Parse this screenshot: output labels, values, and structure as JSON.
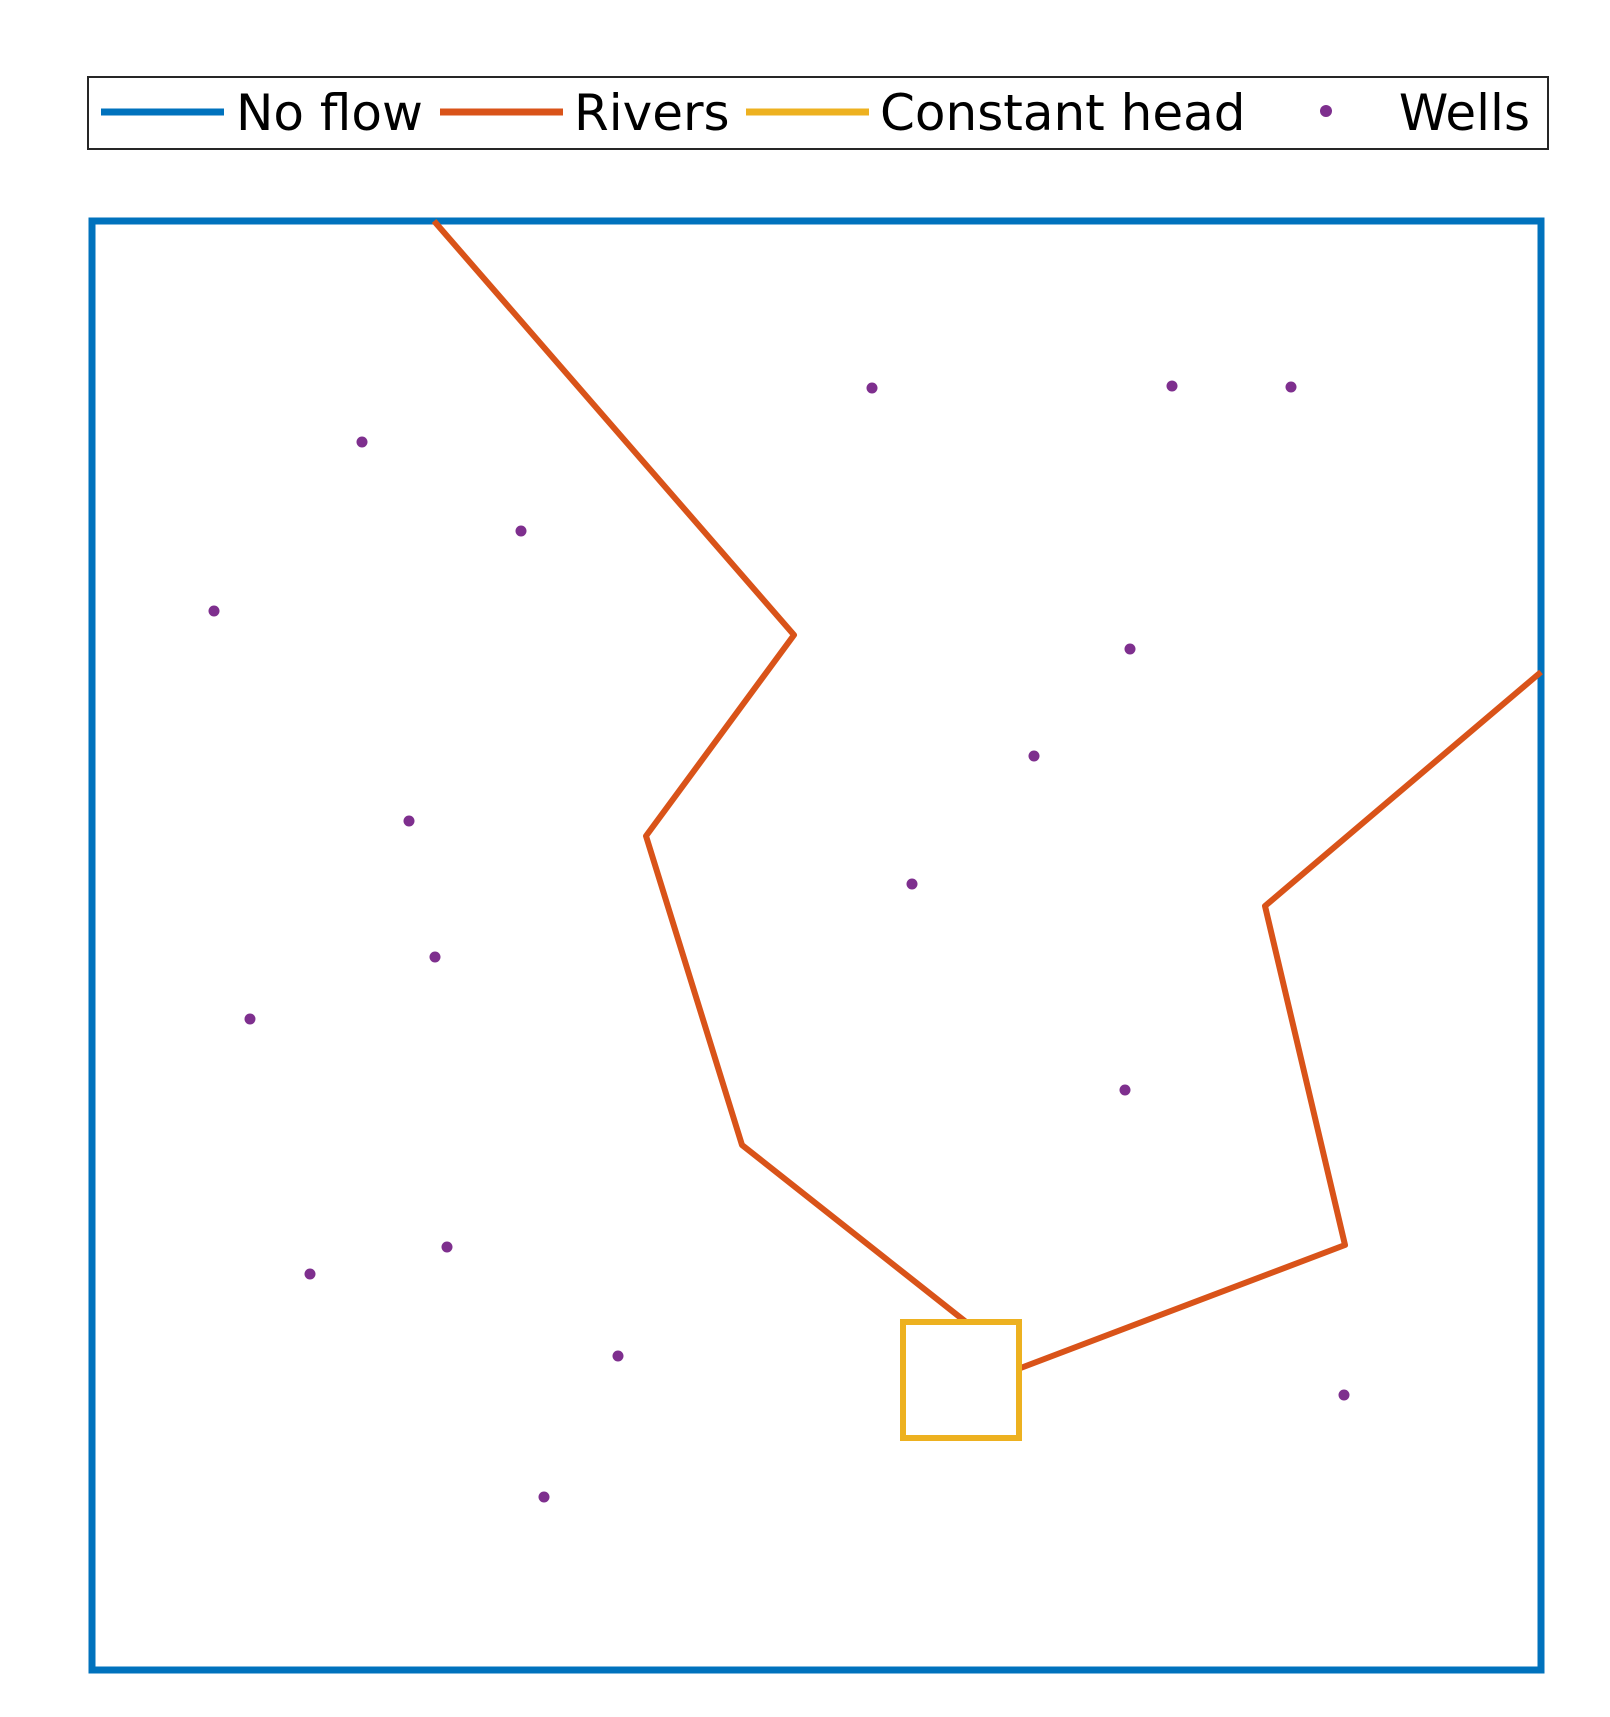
{
  "legend": {
    "items": [
      {
        "label": "No flow",
        "color": "#0072BD",
        "marker": "line"
      },
      {
        "label": "Rivers",
        "color": "#D95319",
        "marker": "line"
      },
      {
        "label": "Constant head",
        "color": "#EDB120",
        "marker": "line"
      },
      {
        "label": "Wells",
        "color": "#7E2F8E",
        "marker": "dot"
      }
    ]
  },
  "model": {
    "domain_color": "#0072BD",
    "river_color": "#D95319",
    "constant_head_color": "#EDB120",
    "well_color": "#7E2F8E"
  }
}
